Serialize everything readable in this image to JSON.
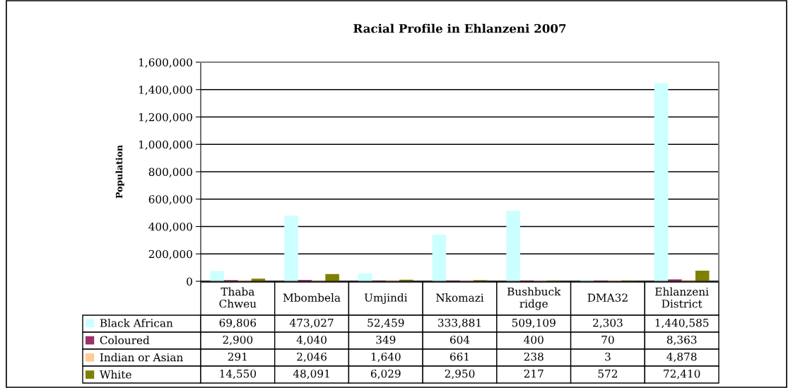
{
  "chart_data": {
    "type": "bar",
    "title": "Racial Profile in Ehlanzeni 2007",
    "ylabel": "Population",
    "categories": [
      "Thaba\nChweu",
      "Mbombela",
      "Umjindi",
      "Nkomazi",
      "Bushbuck\nridge",
      "DMA32",
      "Ehlanzeni\nDistrict"
    ],
    "series": [
      {
        "name": "Black African",
        "color": "#ccffff",
        "values": [
          69806,
          473027,
          52459,
          333881,
          509109,
          2303,
          1440585
        ],
        "value_labels": [
          "69,806",
          "473,027",
          "52,459",
          "333,881",
          "509,109",
          "2,303",
          "1,440,585"
        ]
      },
      {
        "name": "Coloured",
        "color": "#993366",
        "values": [
          2900,
          4040,
          349,
          604,
          400,
          70,
          8363
        ],
        "value_labels": [
          "2,900",
          "4,040",
          "349",
          "604",
          "400",
          "70",
          "8,363"
        ]
      },
      {
        "name": "Indian or Asian",
        "color": "#ffcc99",
        "values": [
          291,
          2046,
          1640,
          661,
          238,
          3,
          4878
        ],
        "value_labels": [
          "291",
          "2,046",
          "1,640",
          "661",
          "238",
          "3",
          "4,878"
        ]
      },
      {
        "name": "White",
        "color": "#808000",
        "values": [
          14550,
          48091,
          6029,
          2950,
          217,
          572,
          72410
        ],
        "value_labels": [
          "14,550",
          "48,091",
          "6,029",
          "2,950",
          "217",
          "572",
          "72,410"
        ]
      }
    ],
    "ylim": [
      0,
      1600000
    ],
    "yticks": [
      0,
      {
        "value": 200000,
        "label": "200,000"
      },
      {
        "value": 400000,
        "label": "400,000"
      },
      {
        "value": 600000,
        "label": "600,000"
      },
      {
        "value": 800000,
        "label": "800,000"
      },
      {
        "value": 1000000,
        "label": "1,000,000"
      },
      {
        "value": 1200000,
        "label": "1,200,000"
      },
      {
        "value": 1400000,
        "label": "1,400,000"
      },
      {
        "value": 1600000,
        "label": "1,600,000"
      }
    ],
    "grid": "y",
    "legend": "bottom"
  }
}
